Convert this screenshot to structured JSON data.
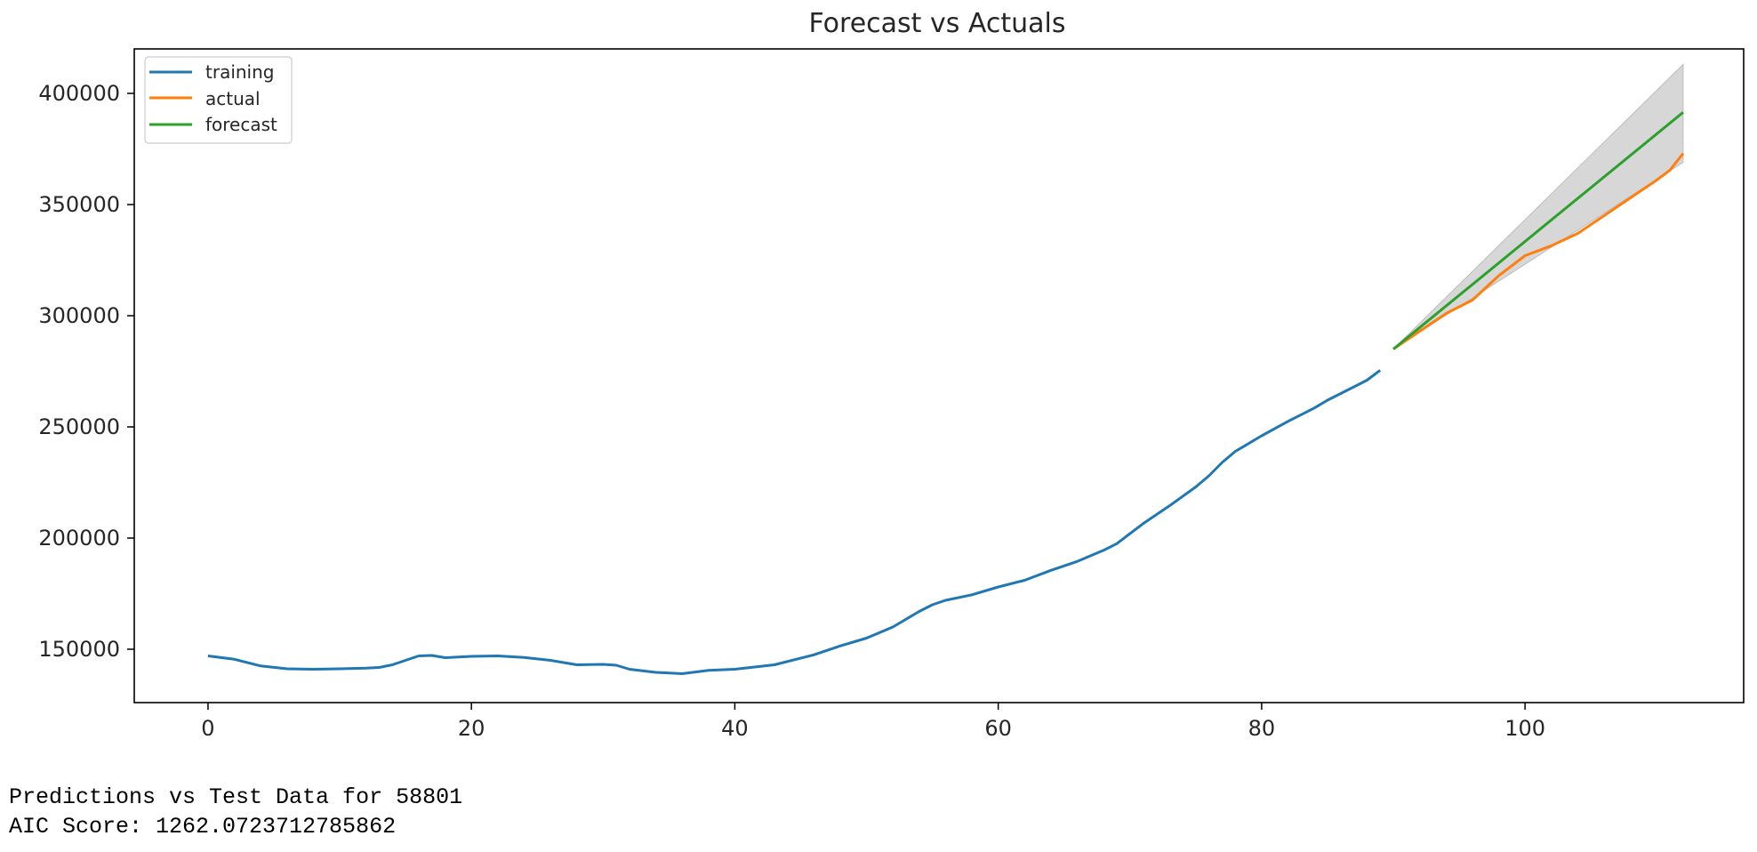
{
  "chart_data": {
    "type": "line",
    "title": "Forecast vs Actuals",
    "xlabel": "",
    "ylabel": "",
    "xlim": [
      -5.6,
      116.6
    ],
    "ylim": [
      126000,
      420000
    ],
    "x_ticks": [
      0,
      20,
      40,
      60,
      80,
      100
    ],
    "y_ticks": [
      150000,
      200000,
      250000,
      300000,
      350000,
      400000
    ],
    "grid": false,
    "legend_position": "top-left",
    "series": [
      {
        "name": "training",
        "color": "#1f77b4",
        "points": [
          [
            0,
            147000
          ],
          [
            2,
            145500
          ],
          [
            4,
            142500
          ],
          [
            6,
            141200
          ],
          [
            8,
            141000
          ],
          [
            10,
            141200
          ],
          [
            12,
            141500
          ],
          [
            13,
            141800
          ],
          [
            14,
            143000
          ],
          [
            16,
            147000
          ],
          [
            17,
            147200
          ],
          [
            18,
            146200
          ],
          [
            20,
            146800
          ],
          [
            22,
            147000
          ],
          [
            24,
            146300
          ],
          [
            26,
            145000
          ],
          [
            28,
            143000
          ],
          [
            30,
            143200
          ],
          [
            31,
            142800
          ],
          [
            32,
            141000
          ],
          [
            34,
            139600
          ],
          [
            36,
            139000
          ],
          [
            38,
            140500
          ],
          [
            40,
            141000
          ],
          [
            43,
            143000
          ],
          [
            46,
            147500
          ],
          [
            48,
            151500
          ],
          [
            50,
            155000
          ],
          [
            52,
            160000
          ],
          [
            54,
            167000
          ],
          [
            55,
            170000
          ],
          [
            56,
            172000
          ],
          [
            58,
            174500
          ],
          [
            60,
            178000
          ],
          [
            62,
            181000
          ],
          [
            64,
            185500
          ],
          [
            66,
            189500
          ],
          [
            68,
            194500
          ],
          [
            69,
            197500
          ],
          [
            70,
            202000
          ],
          [
            71,
            206500
          ],
          [
            73,
            214500
          ],
          [
            75,
            223000
          ],
          [
            76,
            228000
          ],
          [
            77,
            234000
          ],
          [
            78,
            239000
          ],
          [
            80,
            246000
          ],
          [
            82,
            252500
          ],
          [
            84,
            258500
          ],
          [
            85,
            262000
          ],
          [
            86,
            265000
          ],
          [
            88,
            271000
          ],
          [
            89,
            275500
          ]
        ]
      },
      {
        "name": "actual",
        "color": "#ff7f0e",
        "points": [
          [
            90,
            285000
          ],
          [
            92,
            293000
          ],
          [
            94,
            301000
          ],
          [
            96,
            307000
          ],
          [
            98,
            318000
          ],
          [
            100,
            327000
          ],
          [
            102,
            331500
          ],
          [
            104,
            337000
          ],
          [
            106,
            345000
          ],
          [
            108,
            353000
          ],
          [
            110,
            361000
          ],
          [
            111,
            365500
          ],
          [
            112,
            373000
          ]
        ]
      },
      {
        "name": "forecast",
        "color": "#2ca02c",
        "points": [
          [
            90,
            285000
          ],
          [
            112,
            391500
          ]
        ]
      }
    ],
    "confidence_band": {
      "color": "#bdbdbd",
      "x": [
        90,
        112
      ],
      "upper": [
        285000,
        413000
      ],
      "lower": [
        285000,
        369000
      ]
    }
  },
  "output": {
    "line1": "Predictions vs Test Data for 58801",
    "line2": "AIC Score: 1262.0723712785862"
  }
}
